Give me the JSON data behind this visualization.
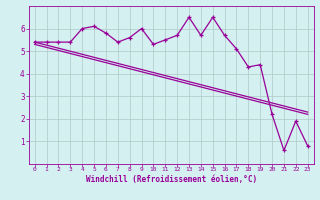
{
  "line1_x": [
    0,
    1,
    2,
    3,
    4,
    5,
    6,
    7,
    8,
    9,
    10,
    11,
    12,
    13,
    14,
    15,
    16,
    17,
    18,
    19,
    20,
    21,
    22,
    23
  ],
  "line1_y": [
    5.4,
    5.4,
    5.4,
    5.4,
    6.0,
    6.1,
    5.8,
    5.4,
    5.6,
    6.0,
    5.3,
    5.5,
    5.7,
    6.5,
    5.7,
    6.5,
    5.7,
    5.1,
    4.3,
    4.4,
    2.2,
    0.6,
    1.9,
    0.8
  ],
  "line2_x": [
    0,
    23
  ],
  "line2_y": [
    5.4,
    2.3
  ],
  "line3_x": [
    0,
    23
  ],
  "line3_y": [
    5.3,
    2.2
  ],
  "line_color": "#990099",
  "bg_color": "#d4f0f0",
  "grid_color": "#b0c8c8",
  "xlabel": "Windchill (Refroidissement éolien,°C)",
  "xlim": [
    -0.5,
    23.5
  ],
  "ylim": [
    0,
    7
  ],
  "yticks": [
    1,
    2,
    3,
    4,
    5,
    6
  ],
  "xticks": [
    0,
    1,
    2,
    3,
    4,
    5,
    6,
    7,
    8,
    9,
    10,
    11,
    12,
    13,
    14,
    15,
    16,
    17,
    18,
    19,
    20,
    21,
    22,
    23
  ]
}
